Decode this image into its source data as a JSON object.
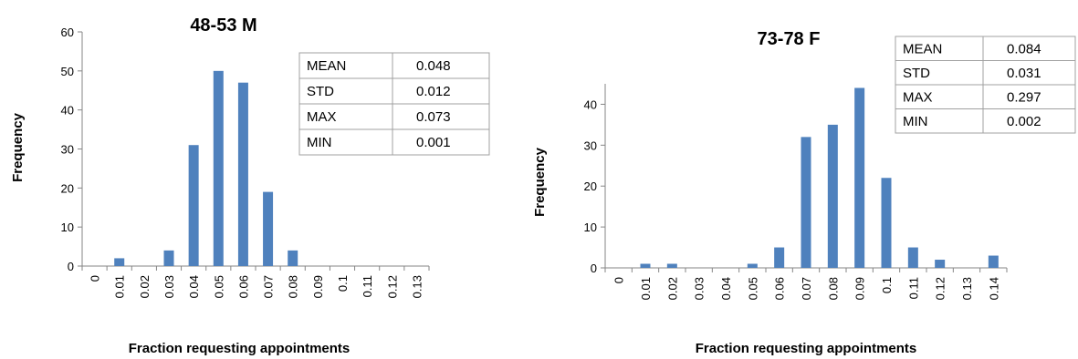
{
  "colors": {
    "bar": "#4F81BD",
    "axis": "#868686",
    "table_border": "#A0A0A0"
  },
  "chart_data": [
    {
      "type": "bar",
      "title": "48-53 M",
      "xlabel": "Fraction requesting appointments",
      "ylabel": "Frequency",
      "categories": [
        "0",
        "0.01",
        "0.02",
        "0.03",
        "0.04",
        "0.05",
        "0.06",
        "0.07",
        "0.08",
        "0.09",
        "0.1",
        "0.11",
        "0.12",
        "0.13"
      ],
      "values": [
        0,
        2,
        0,
        4,
        31,
        50,
        47,
        19,
        4,
        0,
        0,
        0,
        0,
        0
      ],
      "ylim": [
        0,
        60
      ],
      "yticks": [
        "0",
        "10",
        "20",
        "30",
        "40",
        "50",
        "60"
      ],
      "grid": false,
      "stats": [
        {
          "label": "MEAN",
          "value": "0.048"
        },
        {
          "label": "STD",
          "value": "0.012"
        },
        {
          "label": "MAX",
          "value": "0.073"
        },
        {
          "label": "MIN",
          "value": "0.001"
        }
      ]
    },
    {
      "type": "bar",
      "title": "73-78 F",
      "xlabel": "Fraction requesting appointments",
      "ylabel": "Frequency",
      "categories": [
        "0",
        "0.01",
        "0.02",
        "0.03",
        "0.04",
        "0.05",
        "0.06",
        "0.07",
        "0.08",
        "0.09",
        "0.1",
        "0.11",
        "0.12",
        "0.13",
        "0.14"
      ],
      "values": [
        0,
        1,
        1,
        0,
        0,
        1,
        5,
        32,
        35,
        44,
        22,
        5,
        2,
        0,
        3
      ],
      "ylim": [
        0,
        45
      ],
      "yticks": [
        "0",
        "10",
        "20",
        "30",
        "40"
      ],
      "grid": false,
      "stats": [
        {
          "label": "MEAN",
          "value": "0.084"
        },
        {
          "label": "STD",
          "value": "0.031"
        },
        {
          "label": "MAX",
          "value": "0.297"
        },
        {
          "label": "MIN",
          "value": "0.002"
        }
      ]
    }
  ]
}
